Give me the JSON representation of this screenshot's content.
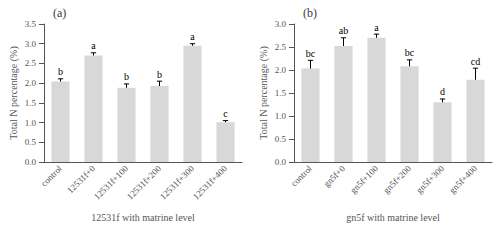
{
  "chart_data": [
    {
      "type": "bar",
      "title": "(a)",
      "xlabel": "12531f with matrine level",
      "ylabel": "Total N percentage (%)",
      "categories": [
        "control",
        "12531f+0",
        "12531f+100",
        "12531f+200",
        "12531f+300",
        "12531f+400"
      ],
      "values": [
        2.04,
        2.7,
        1.88,
        1.93,
        2.95,
        1.01
      ],
      "errors": [
        0.07,
        0.07,
        0.1,
        0.12,
        0.05,
        0.04
      ],
      "annotations": [
        "b",
        "a",
        "b",
        "b",
        "a",
        "c"
      ],
      "color": "#d8d8d8",
      "ylim": [
        0,
        3.5
      ],
      "yticks": [
        {
          "value": 0.0,
          "label": "0.0"
        },
        0.5,
        {
          "value": 1.0,
          "label": "1.0"
        },
        1.5,
        {
          "value": 2.0,
          "label": "2.0"
        },
        2.5,
        {
          "value": 3.0,
          "label": "3.0"
        },
        3.5
      ],
      "grid": false
    },
    {
      "type": "bar",
      "title": "(b)",
      "xlabel": "gn5f with matrine level",
      "ylabel": "Total N percentage (%)",
      "categories": [
        "control",
        "gn5f+0",
        "gn5f+100",
        "gn5f+200",
        "gn5f+300",
        "gn5f+400"
      ],
      "values": [
        2.03,
        2.52,
        2.7,
        2.08,
        1.3,
        1.79
      ],
      "errors": [
        0.18,
        0.18,
        0.08,
        0.14,
        0.07,
        0.25
      ],
      "annotations": [
        "bc",
        "ab",
        "a",
        "bc",
        "d",
        "cd"
      ],
      "color": "#d8d8d8",
      "ylim": [
        0,
        3.0
      ],
      "yticks": [
        {
          "value": 0.0,
          "label": "0.0"
        },
        0.5,
        {
          "value": 1.0,
          "label": "1.0"
        },
        1.5,
        {
          "value": 2.0,
          "label": "2.0"
        },
        2.5,
        {
          "value": 3.0,
          "label": "3.0"
        }
      ],
      "grid": false
    }
  ]
}
